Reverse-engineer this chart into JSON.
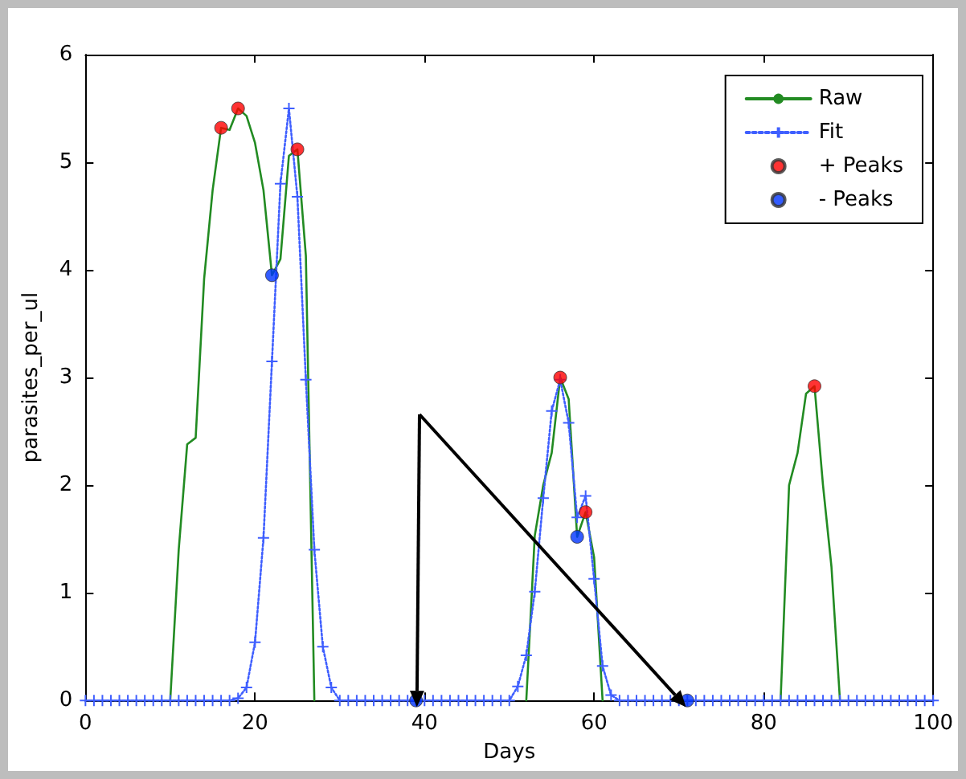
{
  "chart_data": {
    "type": "line",
    "xlabel": "Days",
    "ylabel": "parasites_per_ul",
    "x": [
      0,
      1,
      2,
      3,
      4,
      5,
      6,
      7,
      8,
      9,
      10,
      11,
      12,
      13,
      14,
      15,
      16,
      17,
      18,
      19,
      20,
      21,
      22,
      23,
      24,
      25,
      26,
      27,
      28,
      29,
      30,
      31,
      32,
      33,
      34,
      35,
      36,
      37,
      38,
      39,
      40,
      41,
      42,
      43,
      44,
      45,
      46,
      47,
      48,
      49,
      50,
      51,
      52,
      53,
      54,
      55,
      56,
      57,
      58,
      59,
      60,
      61,
      62,
      63,
      64,
      65,
      66,
      67,
      68,
      69,
      70,
      71,
      72,
      73,
      74,
      75,
      76,
      77,
      78,
      79,
      80,
      81,
      82,
      83,
      84,
      85,
      86,
      87,
      88,
      89,
      90,
      91,
      92,
      93,
      94,
      95,
      96,
      97,
      98,
      99,
      100
    ],
    "series": [
      {
        "name": "Raw",
        "color": "#228b22",
        "marker": "none",
        "line_style": "solid",
        "values": [
          null,
          null,
          null,
          null,
          null,
          null,
          null,
          null,
          null,
          null,
          0,
          1.4,
          2.38,
          2.44,
          3.92,
          4.74,
          5.32,
          5.3,
          5.5,
          5.43,
          5.18,
          4.74,
          3.95,
          4.1,
          5.06,
          5.12,
          4.13,
          0,
          null,
          null,
          null,
          null,
          null,
          null,
          null,
          null,
          null,
          null,
          null,
          null,
          null,
          null,
          null,
          null,
          null,
          null,
          null,
          null,
          null,
          null,
          null,
          null,
          0,
          1.53,
          2.0,
          2.3,
          3.0,
          2.8,
          1.52,
          1.75,
          1.33,
          0,
          null,
          null,
          null,
          null,
          null,
          null,
          null,
          null,
          null,
          null,
          null,
          null,
          null,
          null,
          null,
          null,
          null,
          null,
          null,
          null,
          0,
          2.0,
          2.3,
          2.85,
          2.92,
          2.0,
          1.24,
          0,
          null,
          null,
          null,
          null,
          null,
          null,
          null,
          null,
          null,
          null,
          null
        ]
      },
      {
        "name": "Fit",
        "color": "#3f5fff",
        "marker": "cross",
        "line_style": "dotted",
        "values": [
          0,
          0,
          0,
          0,
          0,
          0,
          0,
          0,
          0,
          0,
          0,
          0,
          0,
          0,
          0,
          0,
          0,
          0,
          0.02,
          0.12,
          0.54,
          1.51,
          3.15,
          4.8,
          5.5,
          4.68,
          2.98,
          1.4,
          0.5,
          0.12,
          0,
          0,
          0,
          0,
          0,
          0,
          0,
          0,
          0,
          0,
          0,
          0,
          0,
          0,
          0,
          0,
          0,
          0,
          0,
          0,
          0,
          0.13,
          0.42,
          1.01,
          1.88,
          2.69,
          2.98,
          2.58,
          1.7,
          1.9,
          1.13,
          0.32,
          0.05,
          0,
          0,
          0,
          0,
          0,
          0,
          0,
          0,
          0,
          0,
          0,
          0,
          0,
          0,
          0,
          0,
          0,
          0,
          0,
          0,
          0,
          0,
          0,
          0,
          0,
          0,
          0,
          0,
          0,
          0,
          0,
          0,
          0,
          0,
          0,
          0,
          0,
          0
        ]
      },
      {
        "name": "+ Peaks",
        "type": "scatter",
        "color": "#ff0000",
        "marker": "circle",
        "x": [
          16,
          18,
          25,
          56,
          59,
          86
        ],
        "values": [
          5.32,
          5.5,
          5.12,
          3.0,
          1.75,
          2.92
        ]
      },
      {
        "name": "- Peaks",
        "type": "scatter",
        "color": "#0033ff",
        "marker": "circle",
        "x": [
          22,
          39,
          58,
          71
        ],
        "values": [
          3.95,
          0,
          1.52,
          0
        ]
      }
    ],
    "xlim": [
      0,
      100
    ],
    "xticks": [
      0,
      20,
      40,
      60,
      80,
      100
    ],
    "ylim": [
      0,
      6
    ],
    "yticks": [
      0,
      1,
      2,
      3,
      4,
      5,
      6
    ],
    "grid": false,
    "legend": "top right"
  }
}
